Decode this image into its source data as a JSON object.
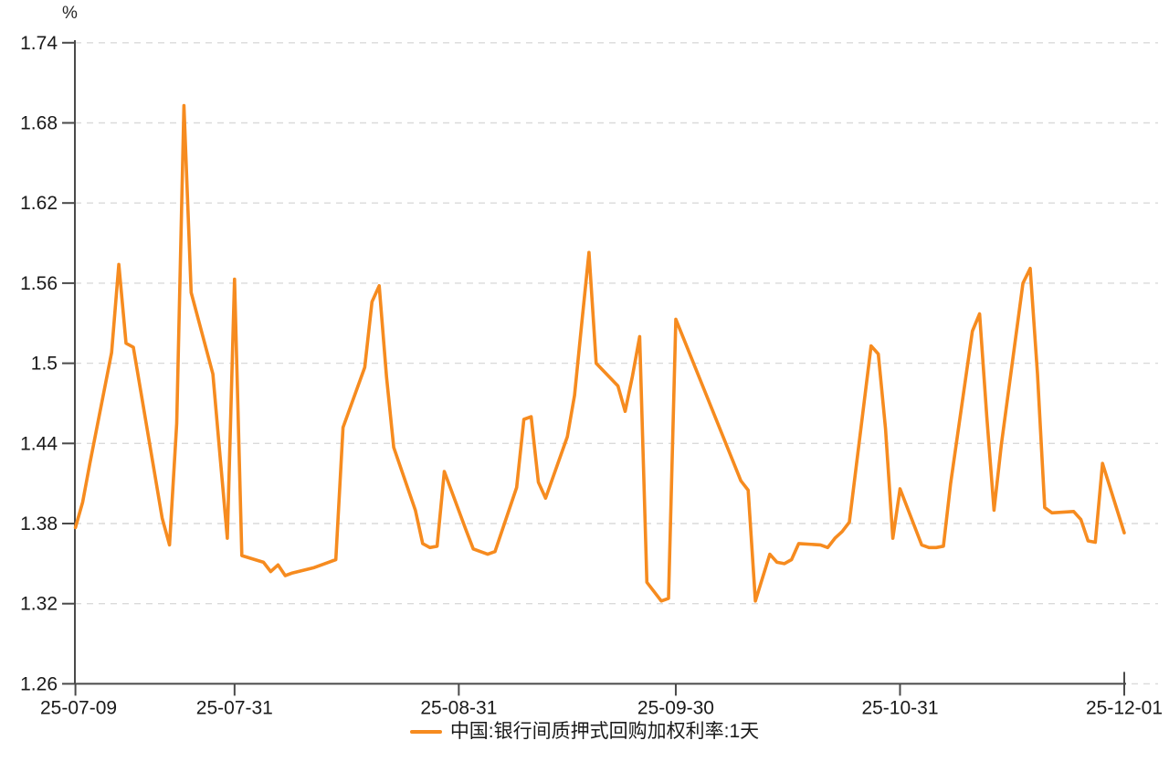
{
  "chart_data": {
    "type": "line",
    "title": "",
    "unit": "%",
    "xlabel": "",
    "ylabel": "%",
    "ylim": [
      1.26,
      1.74
    ],
    "grid": "horizontal-dashed",
    "legend_position": "bottom-center",
    "y_ticks": [
      1.26,
      1.32,
      1.38,
      1.44,
      1.5,
      1.56,
      1.62,
      1.68,
      1.74
    ],
    "x_ticks": [
      {
        "label": "25-07-09",
        "date": "2025-07-09"
      },
      {
        "label": "25-07-31",
        "date": "2025-07-31"
      },
      {
        "label": "25-08-31",
        "date": "2025-08-31"
      },
      {
        "label": "25-09-30",
        "date": "2025-09-30"
      },
      {
        "label": "25-10-31",
        "date": "2025-10-31"
      },
      {
        "label": "25-12-01",
        "date": "2025-12-01"
      }
    ],
    "colors": {
      "series": "#f68b1f",
      "axis": "#4a4a4a",
      "grid": "#dadada",
      "text": "#1a1a1a"
    },
    "series": [
      {
        "name": "中国:银行间质押式回购加权利率:1天",
        "color": "#f68b1f",
        "dates": [
          "2025-07-09",
          "2025-07-10",
          "2025-07-11",
          "2025-07-14",
          "2025-07-15",
          "2025-07-16",
          "2025-07-17",
          "2025-07-18",
          "2025-07-21",
          "2025-07-22",
          "2025-07-23",
          "2025-07-24",
          "2025-07-25",
          "2025-07-28",
          "2025-07-29",
          "2025-07-30",
          "2025-07-31",
          "2025-08-01",
          "2025-08-04",
          "2025-08-05",
          "2025-08-06",
          "2025-08-07",
          "2025-08-08",
          "2025-08-11",
          "2025-08-12",
          "2025-08-13",
          "2025-08-14",
          "2025-08-15",
          "2025-08-18",
          "2025-08-19",
          "2025-08-20",
          "2025-08-21",
          "2025-08-22",
          "2025-08-25",
          "2025-08-26",
          "2025-08-27",
          "2025-08-28",
          "2025-08-29",
          "2025-09-01",
          "2025-09-02",
          "2025-09-03",
          "2025-09-04",
          "2025-09-05",
          "2025-09-08",
          "2025-09-09",
          "2025-09-10",
          "2025-09-11",
          "2025-09-12",
          "2025-09-15",
          "2025-09-16",
          "2025-09-17",
          "2025-09-18",
          "2025-09-19",
          "2025-09-22",
          "2025-09-23",
          "2025-09-24",
          "2025-09-25",
          "2025-09-26",
          "2025-09-28",
          "2025-09-29",
          "2025-09-30",
          "2025-10-09",
          "2025-10-10",
          "2025-10-11",
          "2025-10-13",
          "2025-10-14",
          "2025-10-15",
          "2025-10-16",
          "2025-10-17",
          "2025-10-20",
          "2025-10-21",
          "2025-10-22",
          "2025-10-23",
          "2025-10-24",
          "2025-10-27",
          "2025-10-28",
          "2025-10-29",
          "2025-10-30",
          "2025-10-31",
          "2025-11-03",
          "2025-11-04",
          "2025-11-05",
          "2025-11-06",
          "2025-11-07",
          "2025-11-10",
          "2025-11-11",
          "2025-11-12",
          "2025-11-13",
          "2025-11-14",
          "2025-11-17",
          "2025-11-18",
          "2025-11-19",
          "2025-11-20",
          "2025-11-21",
          "2025-11-24",
          "2025-11-25",
          "2025-11-26",
          "2025-11-27",
          "2025-11-28",
          "2025-12-01"
        ],
        "values": [
          1.377,
          1.396,
          1.425,
          1.508,
          1.574,
          1.515,
          1.512,
          1.48,
          1.384,
          1.364,
          1.455,
          1.693,
          1.553,
          1.492,
          1.43,
          1.369,
          1.563,
          1.356,
          1.351,
          1.344,
          1.349,
          1.341,
          1.343,
          1.347,
          1.349,
          1.351,
          1.353,
          1.452,
          1.497,
          1.546,
          1.558,
          1.49,
          1.437,
          1.39,
          1.365,
          1.362,
          1.363,
          1.419,
          1.375,
          1.361,
          1.359,
          1.357,
          1.359,
          1.407,
          1.458,
          1.46,
          1.411,
          1.399,
          1.445,
          1.476,
          1.53,
          1.583,
          1.5,
          1.483,
          1.464,
          1.49,
          1.52,
          1.336,
          1.322,
          1.324,
          1.533,
          1.412,
          1.405,
          1.322,
          1.357,
          1.351,
          1.35,
          1.353,
          1.365,
          1.364,
          1.362,
          1.369,
          1.374,
          1.381,
          1.513,
          1.507,
          1.451,
          1.369,
          1.406,
          1.364,
          1.362,
          1.362,
          1.363,
          1.41,
          1.524,
          1.537,
          1.46,
          1.39,
          1.439,
          1.56,
          1.571,
          1.492,
          1.392,
          1.388,
          1.389,
          1.383,
          1.367,
          1.366,
          1.425,
          1.373
        ]
      }
    ]
  }
}
